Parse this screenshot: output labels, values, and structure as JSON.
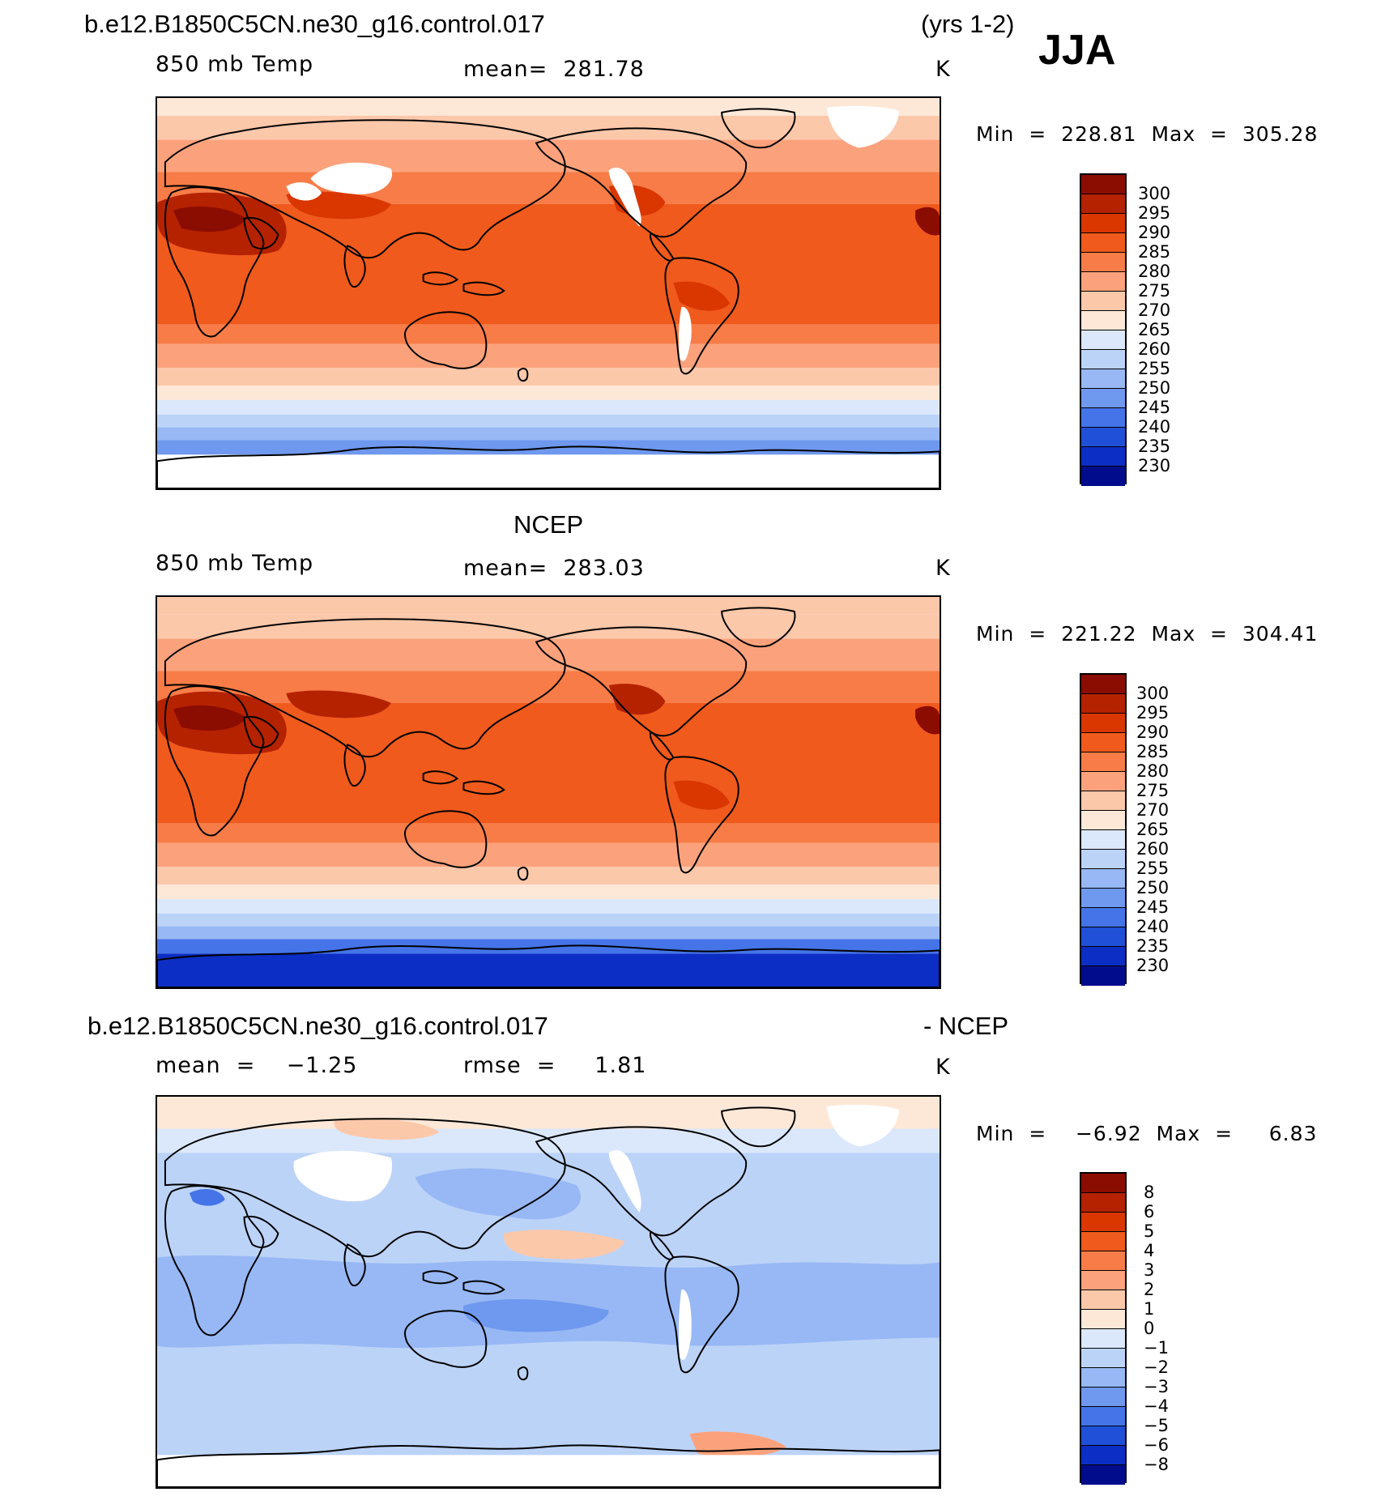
{
  "header": {
    "case_name": "b.e12.B1850C5CN.ne30_g16.control.017",
    "years": "(yrs 1-2)",
    "season": "JJA"
  },
  "panels": [
    {
      "id": "model",
      "title_left": "b.e12.B1850C5CN.ne30_g16.control.017",
      "variable": "850 mb Temp",
      "stat": "mean=  281.78",
      "units": "K",
      "minmax": "Min  =  228.81  Max  =  305.28",
      "field_type": "model"
    },
    {
      "id": "obs",
      "title_center": "NCEP",
      "variable": "850 mb Temp",
      "stat": "mean=  283.03",
      "units": "K",
      "minmax": "Min  =  221.22  Max  =  304.41",
      "field_type": "obs"
    },
    {
      "id": "diff",
      "title_left": "b.e12.B1850C5CN.ne30_g16.control.017",
      "title_right": "- NCEP",
      "variable": "mean  =    −1.25",
      "stat": "rmse  =     1.81",
      "units": "K",
      "minmax": "Min  =    −6.92  Max  =     6.83",
      "field_type": "diff"
    }
  ],
  "colorbars": {
    "temp": {
      "labels": [
        "300",
        "295",
        "290",
        "285",
        "280",
        "275",
        "270",
        "265",
        "260",
        "255",
        "250",
        "245",
        "240",
        "235",
        "230"
      ],
      "colors": [
        "#8b0c00",
        "#b52200",
        "#d93600",
        "#f05a1c",
        "#f77c47",
        "#fba27c",
        "#fcc8aa",
        "#fde8d8",
        "#dbe8fb",
        "#bcd3f8",
        "#97b8f4",
        "#6f98ef",
        "#4474e8",
        "#2050d8",
        "#0c2ec4",
        "#000c8c"
      ]
    },
    "diff": {
      "labels": [
        "8",
        "6",
        "5",
        "4",
        "3",
        "2",
        "1",
        "0",
        "−1",
        "−2",
        "−3",
        "−4",
        "−5",
        "−6",
        "−8"
      ],
      "colors": [
        "#8b0c00",
        "#b52200",
        "#d93600",
        "#f05a1c",
        "#f77c47",
        "#fba27c",
        "#fcc8aa",
        "#fde8d8",
        "#dbe8fb",
        "#bcd3f8",
        "#97b8f4",
        "#6f98ef",
        "#4474e8",
        "#2050d8",
        "#0c2ec4",
        "#000c8c"
      ]
    }
  }
}
